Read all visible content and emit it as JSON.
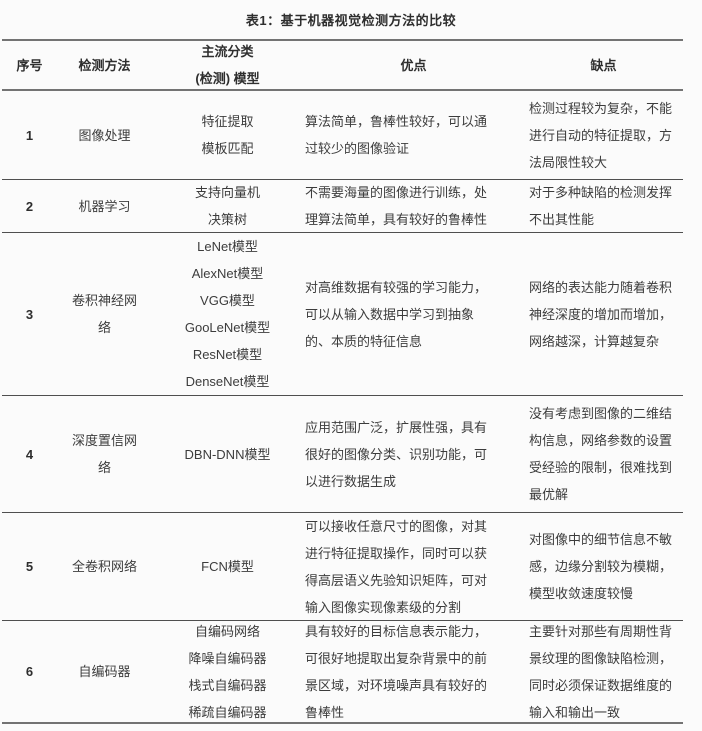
{
  "table": {
    "title": "表1：基于机器视觉检测方法的比较",
    "columns": {
      "index": "序号",
      "method": "检测方法",
      "models": [
        "主流分类",
        "(检测) 模型"
      ],
      "pros": "优点",
      "cons": "缺点"
    },
    "rows": [
      {
        "no": "1",
        "method": "图像处理",
        "models": [
          "特征提取",
          "模板匹配"
        ],
        "pros": "算法简单，鲁棒性较好，可以通过较少的图像验证",
        "cons": "检测过程较为复杂，不能进行自动的特征提取，方法局限性较大"
      },
      {
        "no": "2",
        "method": "机器学习",
        "models": [
          "支持向量机",
          "决策树"
        ],
        "pros": "不需要海量的图像进行训练，处理算法简单，具有较好的鲁棒性",
        "cons": "对于多种缺陷的检测发挥不出其性能"
      },
      {
        "no": "3",
        "method": "卷积神经网络",
        "models": [
          "LeNet模型",
          "AlexNet模型",
          "VGG模型",
          "GooLeNet模型",
          "ResNet模型",
          "DenseNet模型"
        ],
        "pros": "对高维数据有较强的学习能力，可以从输入数据中学习到抽象的、本质的特征信息",
        "cons": "网络的表达能力随着卷积神经深度的增加而增加，网络越深，计算越复杂"
      },
      {
        "no": "4",
        "method": "深度置信网络",
        "models": [
          "DBN-DNN模型"
        ],
        "pros": "应用范围广泛，扩展性强，具有很好的图像分类、识别功能，可以进行数据生成",
        "cons": "没有考虑到图像的二维结构信息，网络参数的设置受经验的限制，很难找到最优解"
      },
      {
        "no": "5",
        "method": "全卷积网络",
        "models": [
          "FCN模型"
        ],
        "pros": "可以接收任意尺寸的图像，对其进行特征提取操作，同时可以获得高层语义先验知识矩阵，可对输入图像实现像素级的分割",
        "cons": "对图像中的细节信息不敏感，边缘分割较为模糊，模型收敛速度较慢"
      },
      {
        "no": "6",
        "method": "自编码器",
        "models": [
          "自编码网络",
          "降噪自编码器",
          "栈式自编码器",
          "稀疏自编码器"
        ],
        "pros": "具有较好的目标信息表示能力，可很好地提取出复杂背景中的前景区域，对环境噪声具有较好的鲁棒性",
        "cons": "主要针对那些有周期性背景纹理的图像缺陷检测，同时必须保证数据维度的输入和输出一致"
      }
    ]
  }
}
